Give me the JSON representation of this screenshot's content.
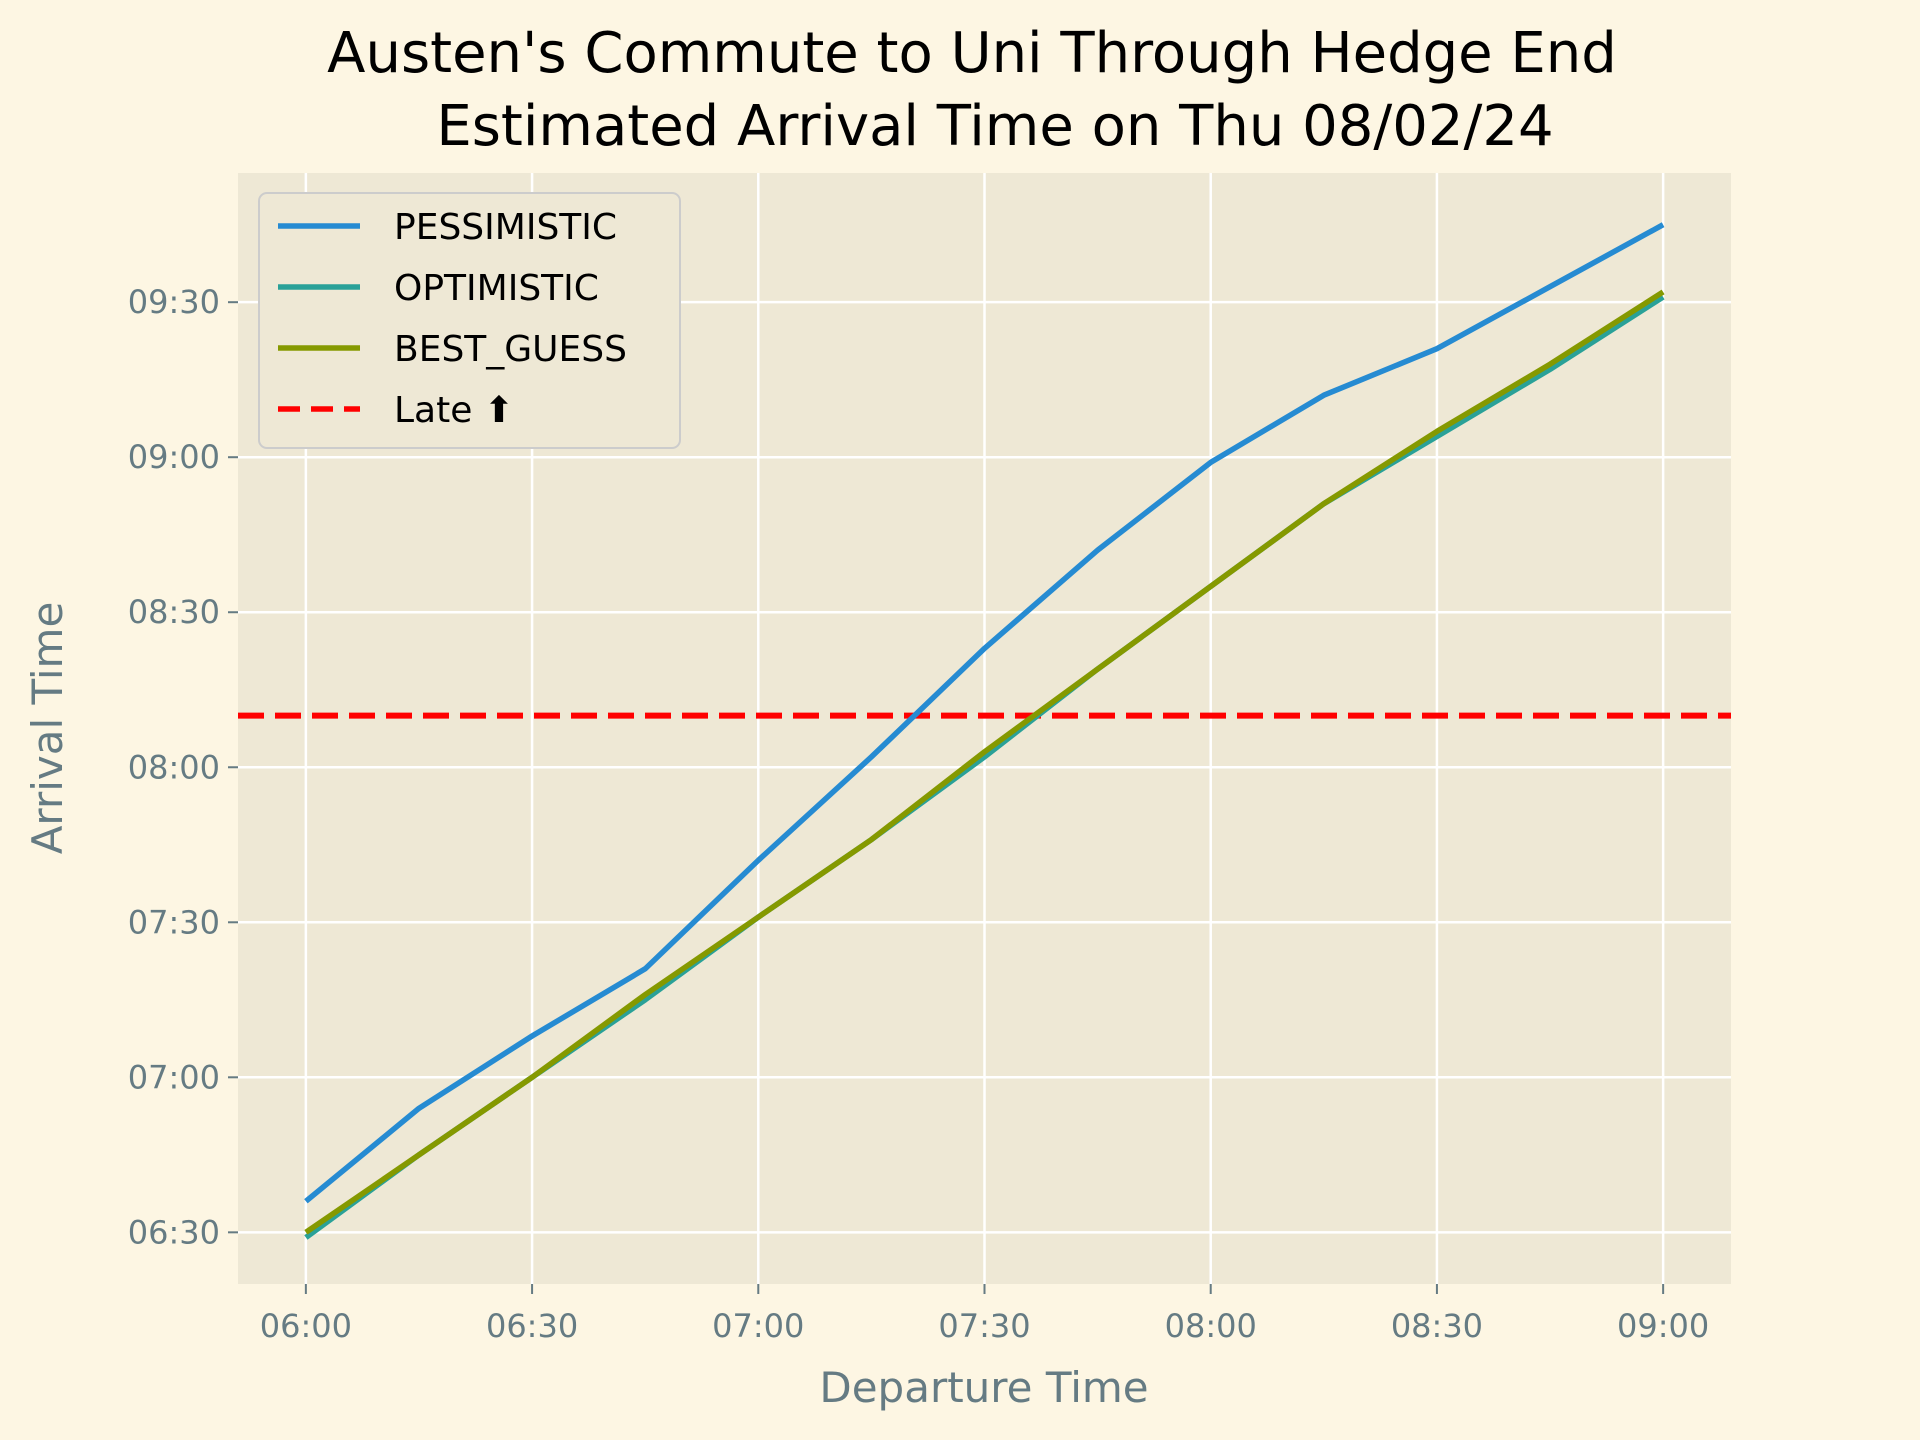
{
  "chart_data": {
    "type": "line",
    "title": "Austen's Commute to Uni Through Hedge End",
    "subtitle": "Estimated Arrival Time on Thu 08/02/24",
    "xlabel": "Departure Time",
    "ylabel": "Arrival Time",
    "x_ticks": [
      "06:00",
      "06:30",
      "07:00",
      "07:30",
      "08:00",
      "08:30",
      "09:00"
    ],
    "y_ticks": [
      "06:30",
      "07:00",
      "07:30",
      "08:00",
      "08:30",
      "09:00",
      "09:30"
    ],
    "xlim": [
      "05:51",
      "09:09"
    ],
    "ylim": [
      "06:20",
      "09:55"
    ],
    "grid": true,
    "legend_position": "top-left",
    "x": [
      "06:00",
      "06:15",
      "06:30",
      "06:45",
      "07:00",
      "07:15",
      "07:30",
      "07:45",
      "08:00",
      "08:15",
      "08:30",
      "08:45",
      "09:00"
    ],
    "series": [
      {
        "name": "PESSIMISTIC",
        "color": "#268bd2",
        "style": "solid",
        "values": [
          "06:36",
          "06:54",
          "07:08",
          "07:21",
          "07:42",
          "08:02",
          "08:23",
          "08:42",
          "08:59",
          "09:12",
          "09:21",
          "09:33",
          "09:45"
        ]
      },
      {
        "name": "OPTIMISTIC",
        "color": "#2aa198",
        "style": "solid",
        "values": [
          "06:29",
          "06:45",
          "07:00",
          "07:15",
          "07:31",
          "07:46",
          "08:02",
          "08:19",
          "08:35",
          "08:51",
          "09:04",
          "09:17",
          "09:31"
        ]
      },
      {
        "name": "BEST_GUESS",
        "color": "#859900",
        "style": "solid",
        "values": [
          "06:30",
          "06:45",
          "07:00",
          "07:16",
          "07:31",
          "07:46",
          "08:03",
          "08:19",
          "08:35",
          "08:51",
          "09:05",
          "09:18",
          "09:32"
        ]
      }
    ],
    "reference_lines": [
      {
        "name": "Late ⬆",
        "orientation": "horizontal",
        "value": "08:10",
        "color": "#ff0000",
        "style": "dashed"
      }
    ]
  }
}
